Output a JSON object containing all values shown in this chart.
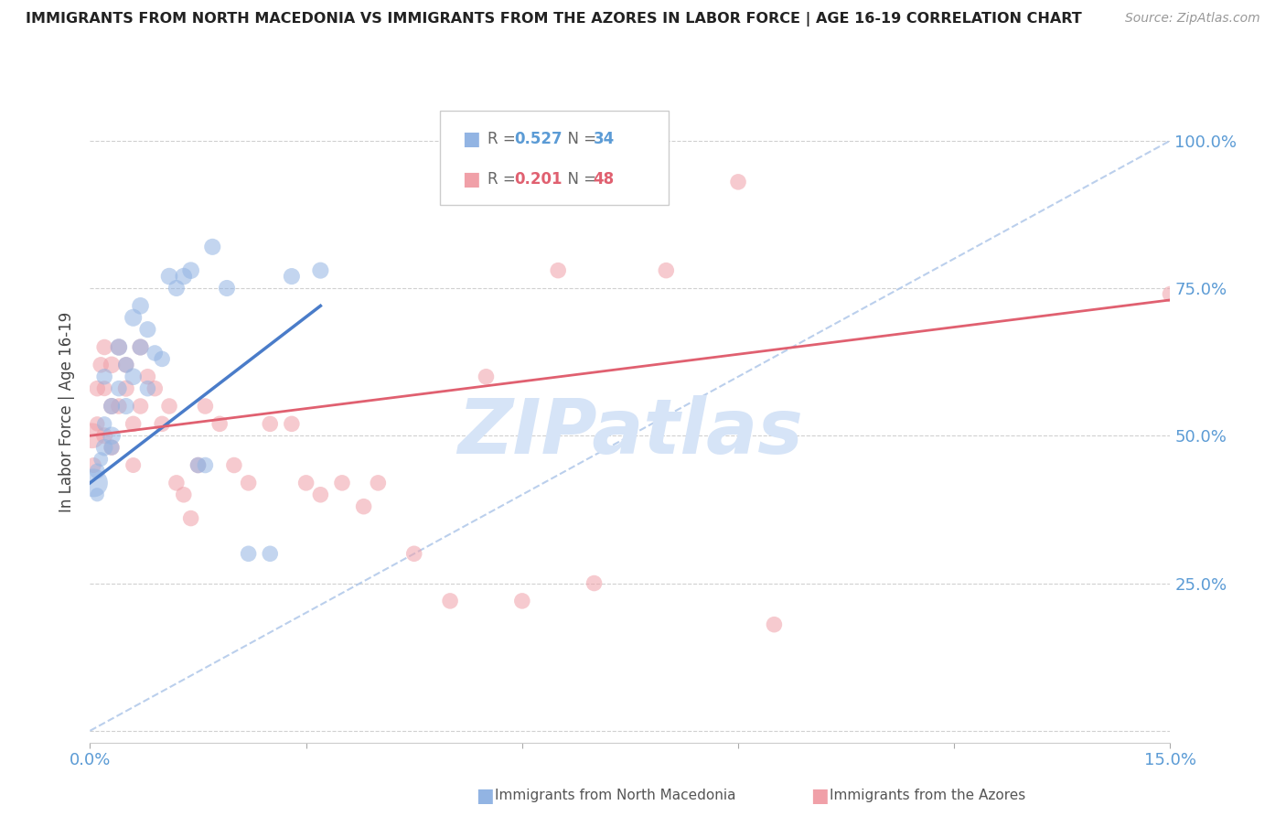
{
  "title": "IMMIGRANTS FROM NORTH MACEDONIA VS IMMIGRANTS FROM THE AZORES IN LABOR FORCE | AGE 16-19 CORRELATION CHART",
  "source": "Source: ZipAtlas.com",
  "ylabel": "In Labor Force | Age 16-19",
  "color_blue": "#92b4e3",
  "color_pink": "#f0a0a8",
  "color_blue_trend": "#4a7cc9",
  "color_pink_trend": "#e06070",
  "color_diag": "#aac4e8",
  "color_axis_labels": "#5b9bd5",
  "color_grid": "#d0d0d0",
  "watermark_color": "#d6e4f7",
  "xlim": [
    0.0,
    0.15
  ],
  "ylim": [
    -0.02,
    1.1
  ],
  "north_macedonia_x": [
    0.0005,
    0.001,
    0.001,
    0.0015,
    0.002,
    0.002,
    0.002,
    0.003,
    0.003,
    0.003,
    0.004,
    0.004,
    0.005,
    0.005,
    0.006,
    0.006,
    0.007,
    0.007,
    0.008,
    0.008,
    0.009,
    0.01,
    0.011,
    0.012,
    0.013,
    0.014,
    0.015,
    0.016,
    0.017,
    0.019,
    0.022,
    0.025,
    0.028,
    0.032
  ],
  "north_macedonia_y": [
    0.42,
    0.44,
    0.4,
    0.46,
    0.48,
    0.52,
    0.6,
    0.5,
    0.55,
    0.48,
    0.58,
    0.65,
    0.55,
    0.62,
    0.6,
    0.7,
    0.65,
    0.72,
    0.58,
    0.68,
    0.64,
    0.63,
    0.77,
    0.75,
    0.77,
    0.78,
    0.45,
    0.45,
    0.82,
    0.75,
    0.3,
    0.3,
    0.77,
    0.78
  ],
  "north_macedonia_sizes": [
    500,
    150,
    120,
    130,
    180,
    140,
    160,
    200,
    170,
    150,
    160,
    180,
    170,
    160,
    180,
    190,
    170,
    180,
    160,
    170,
    160,
    160,
    180,
    170,
    180,
    180,
    160,
    160,
    170,
    170,
    160,
    160,
    170,
    170
  ],
  "azores_x": [
    0.0003,
    0.0005,
    0.001,
    0.001,
    0.0015,
    0.002,
    0.002,
    0.002,
    0.003,
    0.003,
    0.003,
    0.004,
    0.004,
    0.005,
    0.005,
    0.006,
    0.006,
    0.007,
    0.007,
    0.008,
    0.009,
    0.01,
    0.011,
    0.012,
    0.013,
    0.014,
    0.015,
    0.016,
    0.018,
    0.02,
    0.022,
    0.025,
    0.028,
    0.03,
    0.032,
    0.035,
    0.038,
    0.04,
    0.045,
    0.05,
    0.055,
    0.06,
    0.065,
    0.07,
    0.08,
    0.09,
    0.095,
    0.15
  ],
  "azores_y": [
    0.5,
    0.45,
    0.58,
    0.52,
    0.62,
    0.5,
    0.58,
    0.65,
    0.55,
    0.48,
    0.62,
    0.65,
    0.55,
    0.58,
    0.62,
    0.52,
    0.45,
    0.65,
    0.55,
    0.6,
    0.58,
    0.52,
    0.55,
    0.42,
    0.4,
    0.36,
    0.45,
    0.55,
    0.52,
    0.45,
    0.42,
    0.52,
    0.52,
    0.42,
    0.4,
    0.42,
    0.38,
    0.42,
    0.3,
    0.22,
    0.6,
    0.22,
    0.78,
    0.25,
    0.78,
    0.93,
    0.18,
    0.74
  ],
  "azores_sizes": [
    400,
    150,
    160,
    140,
    160,
    170,
    150,
    160,
    170,
    160,
    180,
    170,
    160,
    170,
    160,
    160,
    150,
    170,
    160,
    160,
    160,
    160,
    160,
    160,
    160,
    160,
    160,
    160,
    160,
    160,
    160,
    160,
    160,
    160,
    160,
    160,
    160,
    160,
    160,
    160,
    160,
    160,
    160,
    160,
    160,
    160,
    160,
    160
  ],
  "blue_line_x": [
    0.0,
    0.032
  ],
  "blue_line_y": [
    0.42,
    0.72
  ],
  "pink_line_x": [
    0.0,
    0.15
  ],
  "pink_line_y": [
    0.5,
    0.73
  ],
  "diag_line_x": [
    0.0,
    0.15
  ],
  "diag_line_y": [
    0.0,
    1.0
  ],
  "marker_alpha": 0.55
}
